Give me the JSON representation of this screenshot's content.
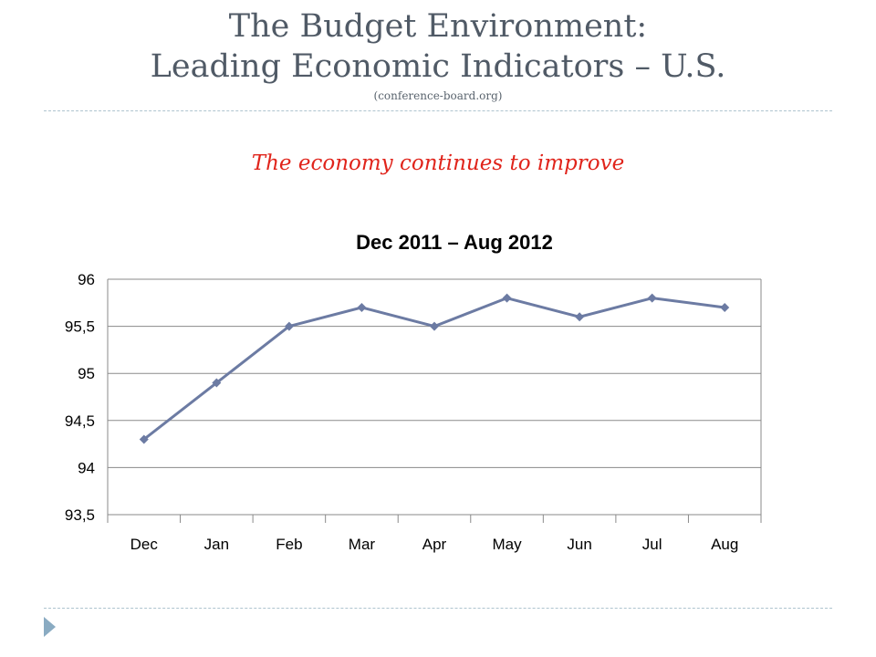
{
  "slide": {
    "title_line1": "The Budget Environment:",
    "title_line2": "Leading Economic Indicators – U.S.",
    "source": "(conference-board.org)",
    "subtitle": "The economy continues to improve"
  },
  "colors": {
    "title": "#505a66",
    "subtitle": "#e0241b",
    "series_line": "#6c7ba3",
    "gridline": "#8a8a8a",
    "divider": "#aec4cf",
    "bullet": "#8aabc2"
  },
  "chart_data": {
    "type": "line",
    "title": "Dec 2011 – Aug 2012",
    "categories": [
      "Dec",
      "Jan",
      "Feb",
      "Mar",
      "Apr",
      "May",
      "Jun",
      "Jul",
      "Aug"
    ],
    "series": [
      {
        "values": [
          94.3,
          94.9,
          95.5,
          95.7,
          95.5,
          95.8,
          95.6,
          95.8,
          95.7
        ],
        "marker": "diamond"
      }
    ],
    "ylim": [
      93.5,
      96
    ],
    "yticks": [
      93.5,
      94,
      94.5,
      95,
      95.5,
      96
    ],
    "ytick_labels": [
      "93,5",
      "94",
      "94,5",
      "95",
      "95,5",
      "96"
    ],
    "xlabel": "",
    "ylabel": "",
    "grid": "horizontal",
    "legend": "none"
  }
}
